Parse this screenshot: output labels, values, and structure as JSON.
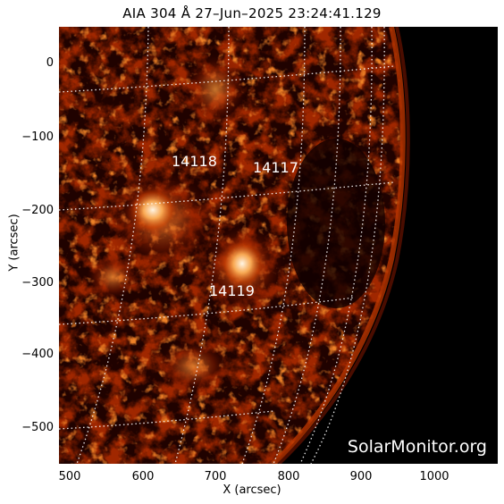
{
  "title": "AIA 304 Å 27–Jun–2025 23:24:41.129",
  "regions": [
    "14118",
    "14117",
    "14119"
  ],
  "watermark": "SolarMonitor.org",
  "axes": {
    "xlabel": "X (arcsec)",
    "ylabel": "Y (arcsec)",
    "xticks": [
      "500",
      "600",
      "700",
      "800",
      "900",
      "1000"
    ],
    "yticks": [
      "0",
      "−100",
      "−200",
      "−300",
      "−400",
      "−500"
    ]
  },
  "colors": {
    "dark": "#1a0000",
    "mid": "#8a1c00",
    "bright": "#ff7a1a",
    "hot": "#fff2d8",
    "grid": "#ffffff"
  }
}
